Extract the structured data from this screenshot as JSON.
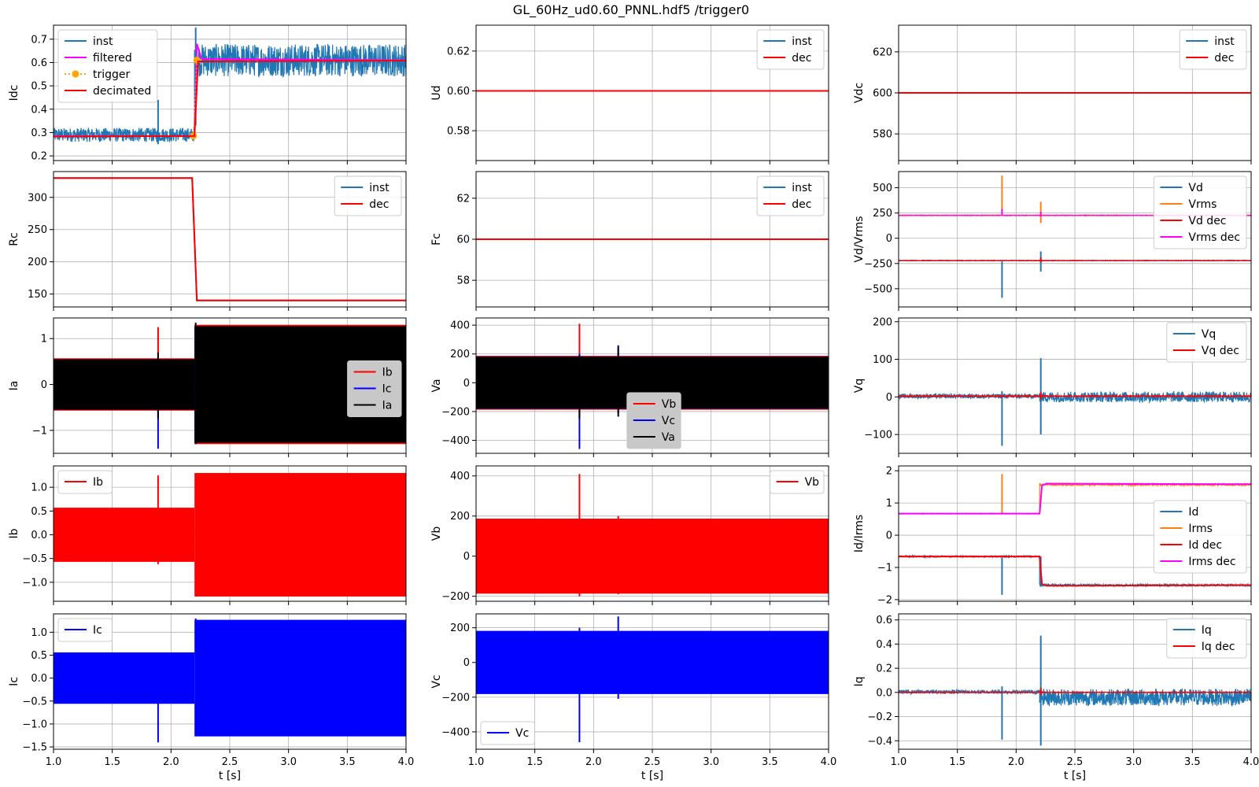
{
  "figure": {
    "title": "GL_60Hz_ud0.60_PNNL.hdf5 /trigger0",
    "xlabel": "t [s]",
    "xlim": [
      1.0,
      4.0
    ],
    "xticks": [
      1.0,
      1.5,
      2.0,
      2.5,
      3.0,
      3.5,
      4.0
    ],
    "grid": true
  },
  "colors": {
    "tab_blue": "#1f77b4",
    "tab_orange": "#ff7f0e",
    "red": "#ff0000",
    "magenta": "#ff00ff",
    "blue": "#0000ff",
    "black": "#000000",
    "trigger_orange": "#ffa500",
    "grid": "#b0b0b0"
  },
  "chart_data": [
    {
      "type": "line",
      "row": 0,
      "col": 0,
      "ylabel": "Idc",
      "ylim": [
        0.18,
        0.76
      ],
      "yticks": [
        0.2,
        0.3,
        0.4,
        0.5,
        0.6,
        0.7
      ],
      "legend_position": "upper-left",
      "series": [
        {
          "name": "inst",
          "color": "#1f77b4",
          "kind": "noisy",
          "segments": [
            [
              1.0,
              2.2,
              0.29
            ],
            [
              2.2,
              4.0,
              0.61
            ]
          ],
          "noise": [
            0.03,
            0.07
          ],
          "spikes": [
            [
              1.89,
              0.44,
              0.25
            ],
            [
              2.21,
              0.75,
              0.33
            ]
          ]
        },
        {
          "name": "filtered",
          "color": "#ff00ff",
          "kind": "step",
          "points": [
            [
              1.0,
              0.285
            ],
            [
              2.2,
              0.285
            ],
            [
              2.22,
              0.68
            ],
            [
              2.26,
              0.615
            ],
            [
              4.0,
              0.61
            ]
          ]
        },
        {
          "name": "trigger",
          "color": "#ffa500",
          "kind": "markers",
          "dash": true,
          "points": [
            [
              2.19,
              0.285
            ],
            [
              2.22,
              0.61
            ]
          ]
        },
        {
          "name": "decimated",
          "color": "#ff0000",
          "kind": "step",
          "points": [
            [
              1.0,
              0.283
            ],
            [
              2.2,
              0.285
            ],
            [
              2.23,
              0.605
            ],
            [
              4.0,
              0.608
            ]
          ]
        }
      ]
    },
    {
      "type": "line",
      "row": 0,
      "col": 1,
      "ylabel": "Ud",
      "ylim": [
        0.565,
        0.633
      ],
      "yticks": [
        0.58,
        0.6,
        0.62
      ],
      "yticklabels": [
        "0.58",
        "0.60",
        "0.62"
      ],
      "legend_position": "upper-right",
      "series": [
        {
          "name": "inst",
          "color": "#1f77b4",
          "kind": "step",
          "points": [
            [
              1.0,
              0.6
            ],
            [
              4.0,
              0.6
            ]
          ]
        },
        {
          "name": "dec",
          "color": "#ff0000",
          "kind": "step",
          "points": [
            [
              1.0,
              0.6
            ],
            [
              4.0,
              0.6
            ]
          ]
        }
      ]
    },
    {
      "type": "line",
      "row": 0,
      "col": 2,
      "ylabel": "Vdc",
      "ylim": [
        567,
        633
      ],
      "yticks": [
        580,
        600,
        620
      ],
      "legend_position": "upper-right",
      "series": [
        {
          "name": "inst",
          "color": "#1f77b4",
          "kind": "step",
          "points": [
            [
              1.0,
              600
            ],
            [
              4.0,
              600
            ]
          ]
        },
        {
          "name": "dec",
          "color": "#ff0000",
          "kind": "step",
          "points": [
            [
              1.0,
              600
            ],
            [
              4.0,
              600
            ]
          ]
        }
      ]
    },
    {
      "type": "line",
      "row": 1,
      "col": 0,
      "ylabel": "Rc",
      "ylim": [
        130,
        340
      ],
      "yticks": [
        150,
        200,
        250,
        300
      ],
      "legend_position": "upper-right",
      "series": [
        {
          "name": "inst",
          "color": "#1f77b4",
          "kind": "step",
          "points": [
            [
              1.0,
              330
            ],
            [
              2.18,
              330
            ],
            [
              2.22,
              140
            ],
            [
              4.0,
              140
            ]
          ]
        },
        {
          "name": "dec",
          "color": "#ff0000",
          "kind": "step",
          "points": [
            [
              1.0,
              330
            ],
            [
              2.18,
              330
            ],
            [
              2.22,
              140
            ],
            [
              4.0,
              140
            ]
          ]
        }
      ]
    },
    {
      "type": "line",
      "row": 1,
      "col": 1,
      "ylabel": "Fc",
      "ylim": [
        56.7,
        63.3
      ],
      "yticks": [
        58,
        60,
        62
      ],
      "legend_position": "upper-right",
      "series": [
        {
          "name": "inst",
          "color": "#1f77b4",
          "kind": "step",
          "points": [
            [
              1.0,
              60
            ],
            [
              4.0,
              60
            ]
          ]
        },
        {
          "name": "dec",
          "color": "#ff0000",
          "kind": "step",
          "points": [
            [
              1.0,
              60
            ],
            [
              4.0,
              60
            ]
          ]
        }
      ]
    },
    {
      "type": "line",
      "row": 1,
      "col": 2,
      "ylabel": "Vd/Vrms",
      "ylim": [
        -680,
        660
      ],
      "yticks": [
        -500,
        -250,
        0,
        250,
        500
      ],
      "legend_position": "upper-right",
      "series": [
        {
          "name": "Vd",
          "color": "#1f77b4",
          "kind": "noisy",
          "segments": [
            [
              1.0,
              4.0,
              -220
            ]
          ],
          "noise": [
            3,
            3
          ],
          "spikes": [
            [
              1.88,
              -590,
              -230
            ],
            [
              2.21,
              -130,
              -330
            ]
          ]
        },
        {
          "name": "Vrms",
          "color": "#ff7f0e",
          "kind": "noisy",
          "segments": [
            [
              1.0,
              4.0,
              228
            ]
          ],
          "noise": [
            3,
            3
          ],
          "spikes": [
            [
              1.88,
              620,
              260
            ],
            [
              2.21,
              360,
              150
            ]
          ]
        },
        {
          "name": "Vd dec",
          "color": "#ff0000",
          "kind": "noisy",
          "segments": [
            [
              1.0,
              4.0,
              -222
            ]
          ],
          "noise": [
            2,
            2
          ],
          "spikes": [
            [
              2.21,
              -190,
              -240
            ]
          ]
        },
        {
          "name": "Vrms dec",
          "color": "#ff00ff",
          "kind": "noisy",
          "segments": [
            [
              1.0,
              4.0,
              225
            ]
          ],
          "noise": [
            2,
            2
          ],
          "spikes": [
            [
              1.88,
              290,
              230
            ],
            [
              2.21,
              260,
              215
            ]
          ]
        }
      ]
    },
    {
      "type": "line",
      "row": 2,
      "col": 0,
      "ylabel": "Ia",
      "ylim": [
        -1.5,
        1.45
      ],
      "yticks": [
        -1,
        0,
        1
      ],
      "legend_position": "center-right",
      "legend_shaded": true,
      "series": [
        {
          "name": "Ib",
          "color": "#ff0000",
          "kind": "band",
          "segments": [
            [
              1.0,
              2.2,
              0.57
            ],
            [
              2.2,
              4.0,
              1.3
            ]
          ],
          "spikes": [
            [
              1.89,
              1.25,
              -0.7
            ]
          ]
        },
        {
          "name": "Ic",
          "color": "#0000ff",
          "kind": "band",
          "segments": [
            [
              1.0,
              2.2,
              0.55
            ],
            [
              2.2,
              4.0,
              1.27
            ]
          ],
          "spikes": [
            [
              1.89,
              0.6,
              -1.4
            ]
          ]
        },
        {
          "name": "Ia",
          "color": "#000000",
          "kind": "band",
          "segments": [
            [
              1.0,
              2.2,
              0.55
            ],
            [
              2.2,
              4.0,
              1.27
            ]
          ],
          "spikes": [
            [
              1.89,
              0.7,
              -0.75
            ],
            [
              2.21,
              1.35,
              -1.3
            ]
          ]
        }
      ]
    },
    {
      "type": "line",
      "row": 2,
      "col": 1,
      "ylabel": "Va",
      "ylim": [
        -490,
        450
      ],
      "yticks": [
        -400,
        -200,
        0,
        200,
        400
      ],
      "legend_position": "lower-center",
      "legend_shaded": true,
      "series": [
        {
          "name": "Vb",
          "color": "#ff0000",
          "kind": "band",
          "segments": [
            [
              1.0,
              4.0,
              187
            ]
          ],
          "spikes": [
            [
              1.88,
              410,
              -240
            ]
          ]
        },
        {
          "name": "Vc",
          "color": "#0000ff",
          "kind": "band",
          "segments": [
            [
              1.0,
              4.0,
              182
            ]
          ],
          "spikes": [
            [
              1.88,
              200,
              -460
            ],
            [
              2.21,
              260,
              -210
            ]
          ]
        },
        {
          "name": "Va",
          "color": "#000000",
          "kind": "band",
          "segments": [
            [
              1.0,
              4.0,
              180
            ]
          ],
          "spikes": [
            [
              1.88,
              190,
              -250
            ],
            [
              2.21,
              250,
              -235
            ]
          ]
        }
      ]
    },
    {
      "type": "line",
      "row": 2,
      "col": 2,
      "ylabel": "Vq",
      "ylim": [
        -150,
        210
      ],
      "yticks": [
        -100,
        0,
        100,
        200
      ],
      "legend_position": "upper-right",
      "series": [
        {
          "name": "Vq",
          "color": "#1f77b4",
          "kind": "noisy",
          "segments": [
            [
              1.0,
              2.2,
              2
            ],
            [
              2.2,
              4.0,
              0
            ]
          ],
          "noise": [
            6,
            14
          ],
          "spikes": [
            [
              1.88,
              15,
              -130
            ],
            [
              2.21,
              103,
              -100
            ]
          ]
        },
        {
          "name": "Vq dec",
          "color": "#ff0000",
          "kind": "noisy",
          "segments": [
            [
              1.0,
              4.0,
              2
            ]
          ],
          "noise": [
            1.5,
            1.5
          ],
          "spikes": [
            [
              2.21,
              14,
              -6
            ]
          ]
        }
      ]
    },
    {
      "type": "line",
      "row": 3,
      "col": 0,
      "ylabel": "Ib",
      "ylim": [
        -1.4,
        1.45
      ],
      "yticks": [
        -1.0,
        -0.5,
        0.0,
        0.5,
        1.0
      ],
      "yticklabels": [
        "−1.0",
        "−0.5",
        "0.0",
        "0.5",
        "1.0"
      ],
      "legend_position": "upper-left",
      "series": [
        {
          "name": "Ib",
          "color": "#ff0000",
          "kind": "band",
          "segments": [
            [
              1.0,
              2.2,
              0.57
            ],
            [
              2.2,
              4.0,
              1.3
            ]
          ],
          "spikes": [
            [
              1.89,
              1.25,
              -0.62
            ]
          ]
        }
      ]
    },
    {
      "type": "line",
      "row": 3,
      "col": 1,
      "ylabel": "Vb",
      "ylim": [
        -225,
        450
      ],
      "yticks": [
        -200,
        0,
        200,
        400
      ],
      "legend_position": "upper-right",
      "series": [
        {
          "name": "Vb",
          "color": "#ff0000",
          "kind": "band",
          "segments": [
            [
              1.0,
              4.0,
              187
            ]
          ],
          "spikes": [
            [
              1.88,
              410,
              -200
            ],
            [
              2.21,
              200,
              -190
            ]
          ]
        }
      ]
    },
    {
      "type": "line",
      "row": 3,
      "col": 2,
      "ylabel": "Id/Irms",
      "ylim": [
        -2.05,
        2.15
      ],
      "yticks": [
        -2,
        -1,
        0,
        1,
        2
      ],
      "legend_position": "center-right",
      "series": [
        {
          "name": "Id",
          "color": "#1f77b4",
          "kind": "noisy",
          "segments": [
            [
              1.0,
              2.2,
              -0.66
            ],
            [
              2.2,
              4.0,
              -1.55
            ]
          ],
          "noise": [
            0.02,
            0.03
          ],
          "spikes": [
            [
              1.88,
              -1.85,
              -0.7
            ],
            [
              2.21,
              -1.6,
              -0.66
            ]
          ]
        },
        {
          "name": "Irms",
          "color": "#ff7f0e",
          "kind": "noisy",
          "segments": [
            [
              1.0,
              2.2,
              0.67
            ],
            [
              2.2,
              4.0,
              1.57
            ]
          ],
          "noise": [
            0.01,
            0.03
          ],
          "spikes": [
            [
              1.88,
              1.9,
              0.66
            ]
          ]
        },
        {
          "name": "Id dec",
          "color": "#ff0000",
          "kind": "step",
          "points": [
            [
              1.0,
              -0.66
            ],
            [
              2.2,
              -0.66
            ],
            [
              2.22,
              -1.52
            ],
            [
              2.26,
              -1.57
            ],
            [
              4.0,
              -1.55
            ]
          ]
        },
        {
          "name": "Irms dec",
          "color": "#ff00ff",
          "kind": "step",
          "points": [
            [
              1.0,
              0.67
            ],
            [
              2.2,
              0.67
            ],
            [
              2.22,
              1.55
            ],
            [
              2.26,
              1.6
            ],
            [
              4.0,
              1.58
            ]
          ]
        }
      ]
    },
    {
      "type": "line",
      "row": 4,
      "col": 0,
      "ylabel": "Ic",
      "ylim": [
        -1.55,
        1.4
      ],
      "yticks": [
        -1.5,
        -1.0,
        -0.5,
        0.0,
        0.5,
        1.0
      ],
      "yticklabels": [
        "−1.5",
        "−1.0",
        "−0.5",
        "0.0",
        "0.5",
        "1.0"
      ],
      "legend_position": "upper-left",
      "series": [
        {
          "name": "Ic",
          "color": "#0000ff",
          "kind": "band",
          "segments": [
            [
              1.0,
              2.2,
              0.56
            ],
            [
              2.2,
              4.0,
              1.27
            ]
          ],
          "spikes": [
            [
              1.89,
              0.56,
              -1.4
            ],
            [
              2.21,
              1.3,
              -0.6
            ]
          ]
        }
      ]
    },
    {
      "type": "line",
      "row": 4,
      "col": 1,
      "ylabel": "Vc",
      "ylim": [
        -500,
        280
      ],
      "yticks": [
        -400,
        -200,
        0,
        200
      ],
      "legend_position": "lower-left",
      "series": [
        {
          "name": "Vc",
          "color": "#0000ff",
          "kind": "band",
          "segments": [
            [
              1.0,
              4.0,
              182
            ]
          ],
          "spikes": [
            [
              1.88,
              200,
              -460
            ],
            [
              2.21,
              265,
              -210
            ]
          ]
        }
      ]
    },
    {
      "type": "line",
      "row": 4,
      "col": 2,
      "ylabel": "Iq",
      "ylim": [
        -0.47,
        0.65
      ],
      "yticks": [
        -0.4,
        -0.2,
        0.0,
        0.2,
        0.4,
        0.6
      ],
      "yticklabels": [
        "−0.4",
        "−0.2",
        "0.0",
        "0.2",
        "0.4",
        "0.6"
      ],
      "legend_position": "upper-right",
      "series": [
        {
          "name": "Iq",
          "color": "#1f77b4",
          "kind": "noisy",
          "segments": [
            [
              1.0,
              2.2,
              0.005
            ],
            [
              2.2,
              4.0,
              -0.04
            ]
          ],
          "noise": [
            0.015,
            0.07
          ],
          "spikes": [
            [
              1.88,
              0.05,
              -0.39
            ],
            [
              2.21,
              0.47,
              -0.44
            ]
          ]
        },
        {
          "name": "Iq dec",
          "color": "#ff0000",
          "kind": "noisy",
          "segments": [
            [
              1.0,
              4.0,
              0.0
            ]
          ],
          "noise": [
            0.003,
            0.003
          ],
          "spikes": [
            [
              2.21,
              0.04,
              -0.02
            ]
          ]
        }
      ]
    }
  ]
}
